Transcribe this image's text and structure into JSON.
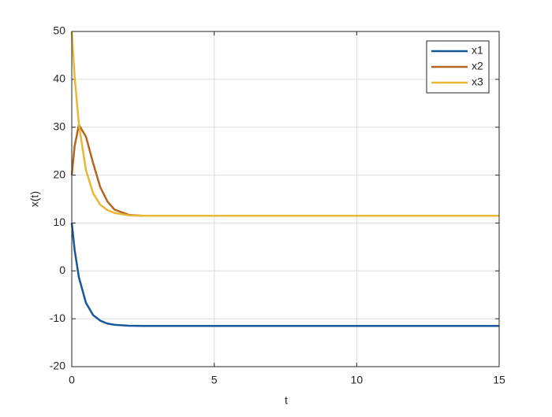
{
  "chart_data": {
    "type": "line",
    "xlabel": "t",
    "ylabel": "x(t)",
    "x": [
      0,
      0.1,
      0.25,
      0.5,
      0.75,
      1,
      1.25,
      1.5,
      2,
      2.5,
      3,
      15
    ],
    "series": [
      {
        "name": "x1",
        "color": "#17579a",
        "values": [
          10,
          4.4,
          -1.35,
          -6.7,
          -9.24,
          -10.4,
          -11.0,
          -11.26,
          -11.45,
          -11.5,
          -11.5,
          -11.5
        ]
      },
      {
        "name": "x2",
        "color": "#b5651d",
        "values": [
          20,
          26,
          30.5,
          28,
          22.5,
          17.5,
          14.5,
          12.8,
          11.7,
          11.5,
          11.5,
          11.5
        ]
      },
      {
        "name": "x3",
        "color": "#e8b734",
        "values": [
          50,
          40.6,
          30.6,
          21.0,
          16.2,
          13.8,
          12.7,
          12.1,
          11.6,
          11.5,
          11.5,
          11.5
        ]
      }
    ],
    "xlim": [
      0,
      15
    ],
    "xticks": [
      0,
      5,
      10,
      15
    ],
    "ylim": [
      -20,
      50
    ],
    "yticks": [
      -20,
      -10,
      0,
      10,
      20,
      30,
      40,
      50
    ],
    "grid": true,
    "legend": "upper-right"
  }
}
